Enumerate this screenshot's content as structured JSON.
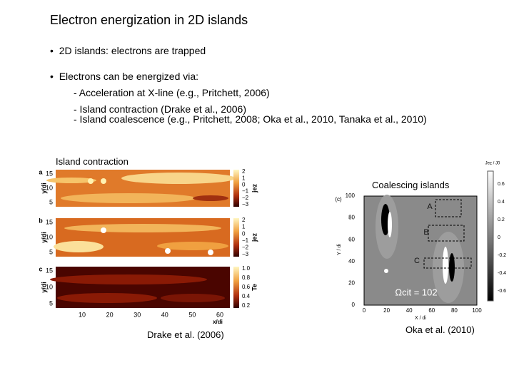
{
  "title": "Electron energization in 2D islands",
  "bullets": [
    {
      "text": "2D islands: electrons are trapped"
    },
    {
      "text": "Electrons can be energized via:",
      "items": [
        "- Acceleration at X-line (e.g., Pritchett, 2006)",
        "- Island contraction (Drake et al., 2006)",
        "- Island coalescence (e.g., Pritchett, 2008; Oka et al., 2010, Tanaka et al., 2010)"
      ]
    }
  ],
  "left_figure": {
    "label": "Island contraction",
    "caption": "Drake et al. (2006)",
    "panels": [
      {
        "letter": "a",
        "cbar_label": "jez",
        "cbar_ticks": [
          "2",
          "1",
          "0",
          "−1",
          "−2",
          "−3"
        ]
      },
      {
        "letter": "b",
        "cbar_label": "jez",
        "cbar_ticks": [
          "2",
          "1",
          "0",
          "−1",
          "−2",
          "−3"
        ]
      },
      {
        "letter": "c",
        "cbar_label": "Te",
        "cbar_ticks": [
          "1.0",
          "0.8",
          "0.6",
          "0.4",
          "0.2"
        ]
      }
    ],
    "y_ticks": [
      "15",
      "10",
      "5"
    ],
    "y_label": "y/di",
    "x_ticks": [
      "10",
      "20",
      "30",
      "40",
      "50",
      "60"
    ],
    "x_label": "x/di"
  },
  "right_figure": {
    "label": "Coalescing islands",
    "caption": "Oka et al. (2010)",
    "panel": "(c)",
    "y_ticks": [
      "100",
      "80",
      "60",
      "40",
      "20",
      "0"
    ],
    "x_ticks": [
      "0",
      "20",
      "40",
      "60",
      "80",
      "100"
    ],
    "x_label": "X / di",
    "y_label": "Y / di",
    "boxes": [
      "A",
      "B",
      "C"
    ],
    "time": "Ωcit = 102",
    "cbar_label": "Jez / J0",
    "cbar_ticks": [
      "0.6",
      "0.4",
      "0.2",
      "0",
      "-0.2",
      "-0.4",
      "-0.6"
    ]
  }
}
